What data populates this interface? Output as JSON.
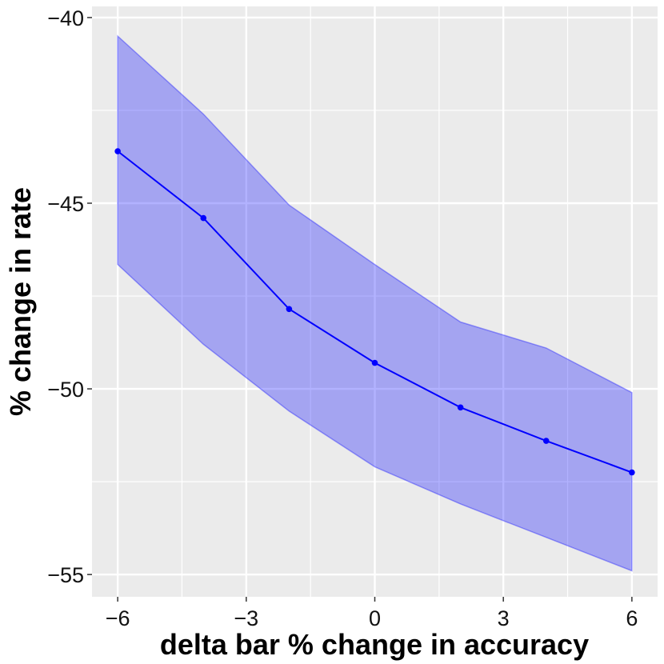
{
  "chart_data": {
    "type": "line",
    "xlabel": "delta bar % change in accuracy",
    "ylabel": "% change in rate",
    "xlim": [
      -6.6,
      6.6
    ],
    "ylim": [
      -55.6,
      -39.7
    ],
    "x_ticks": [
      -6,
      -3,
      0,
      3,
      6
    ],
    "x_tick_labels": [
      "−6",
      "−3",
      "0",
      "3",
      "6"
    ],
    "y_ticks": [
      -55,
      -50,
      -45,
      -40
    ],
    "y_tick_labels": [
      "−55",
      "−50",
      "−45",
      "−40"
    ],
    "grid": true,
    "x": [
      -6,
      -4,
      -2,
      0,
      2,
      4,
      6
    ],
    "series": [
      {
        "values": [
          -43.6,
          -45.4,
          -47.85,
          -49.3,
          -50.5,
          -51.4,
          -52.25
        ],
        "lower": [
          -46.65,
          -48.8,
          -50.6,
          -52.1,
          -53.1,
          -54.0,
          -54.9
        ],
        "upper": [
          -40.5,
          -42.6,
          -45.05,
          -46.65,
          -48.2,
          -48.9,
          -50.1
        ]
      }
    ],
    "colors": {
      "panel_background": "#ebebeb",
      "grid": "#ffffff",
      "line": "#0000ff",
      "band": "#0000ff",
      "band_opacity": 0.3
    }
  }
}
